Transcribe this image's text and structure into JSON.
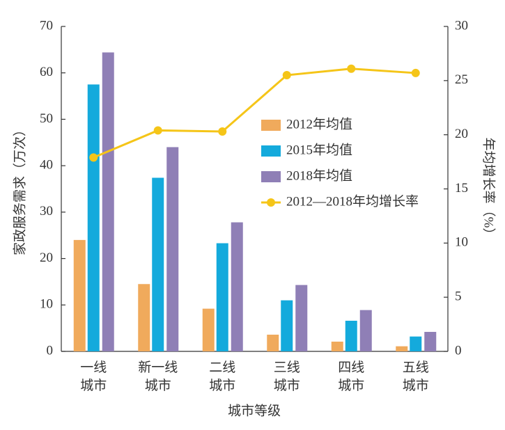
{
  "chart_data": {
    "type": "bar",
    "categories": [
      "一线\n城市",
      "新一线\n城市",
      "二线\n城市",
      "三线\n城市",
      "四线\n城市",
      "五线\n城市"
    ],
    "x_label": "城市等级",
    "y_label": "家政服务需求（万次）",
    "y2_label": "年均增长率（%）",
    "ylim": [
      0,
      70
    ],
    "yticks": [
      0,
      10,
      20,
      30,
      40,
      50,
      60,
      70
    ],
    "y2lim": [
      0,
      30
    ],
    "y2ticks": [
      0,
      5,
      10,
      15,
      20,
      25,
      30
    ],
    "legend": "center",
    "series": [
      {
        "name": "2012年均值",
        "type": "bar",
        "color": "#f0aa5c",
        "values": [
          24,
          14.5,
          9.2,
          3.6,
          2.1,
          1.1
        ]
      },
      {
        "name": "2015年均值",
        "type": "bar",
        "color": "#14aadc",
        "values": [
          57.5,
          37.4,
          23.3,
          11,
          6.6,
          3.2
        ]
      },
      {
        "name": "2018年均值",
        "type": "bar",
        "color": "#8f7fb6",
        "values": [
          64.4,
          44,
          27.8,
          14.3,
          8.9,
          4.2
        ]
      },
      {
        "name": "2012—2018年均增长率",
        "type": "line",
        "axis": "y2",
        "color": "#f5c518",
        "values": [
          17.9,
          20.4,
          20.3,
          25.5,
          26.1,
          25.7
        ]
      }
    ]
  }
}
